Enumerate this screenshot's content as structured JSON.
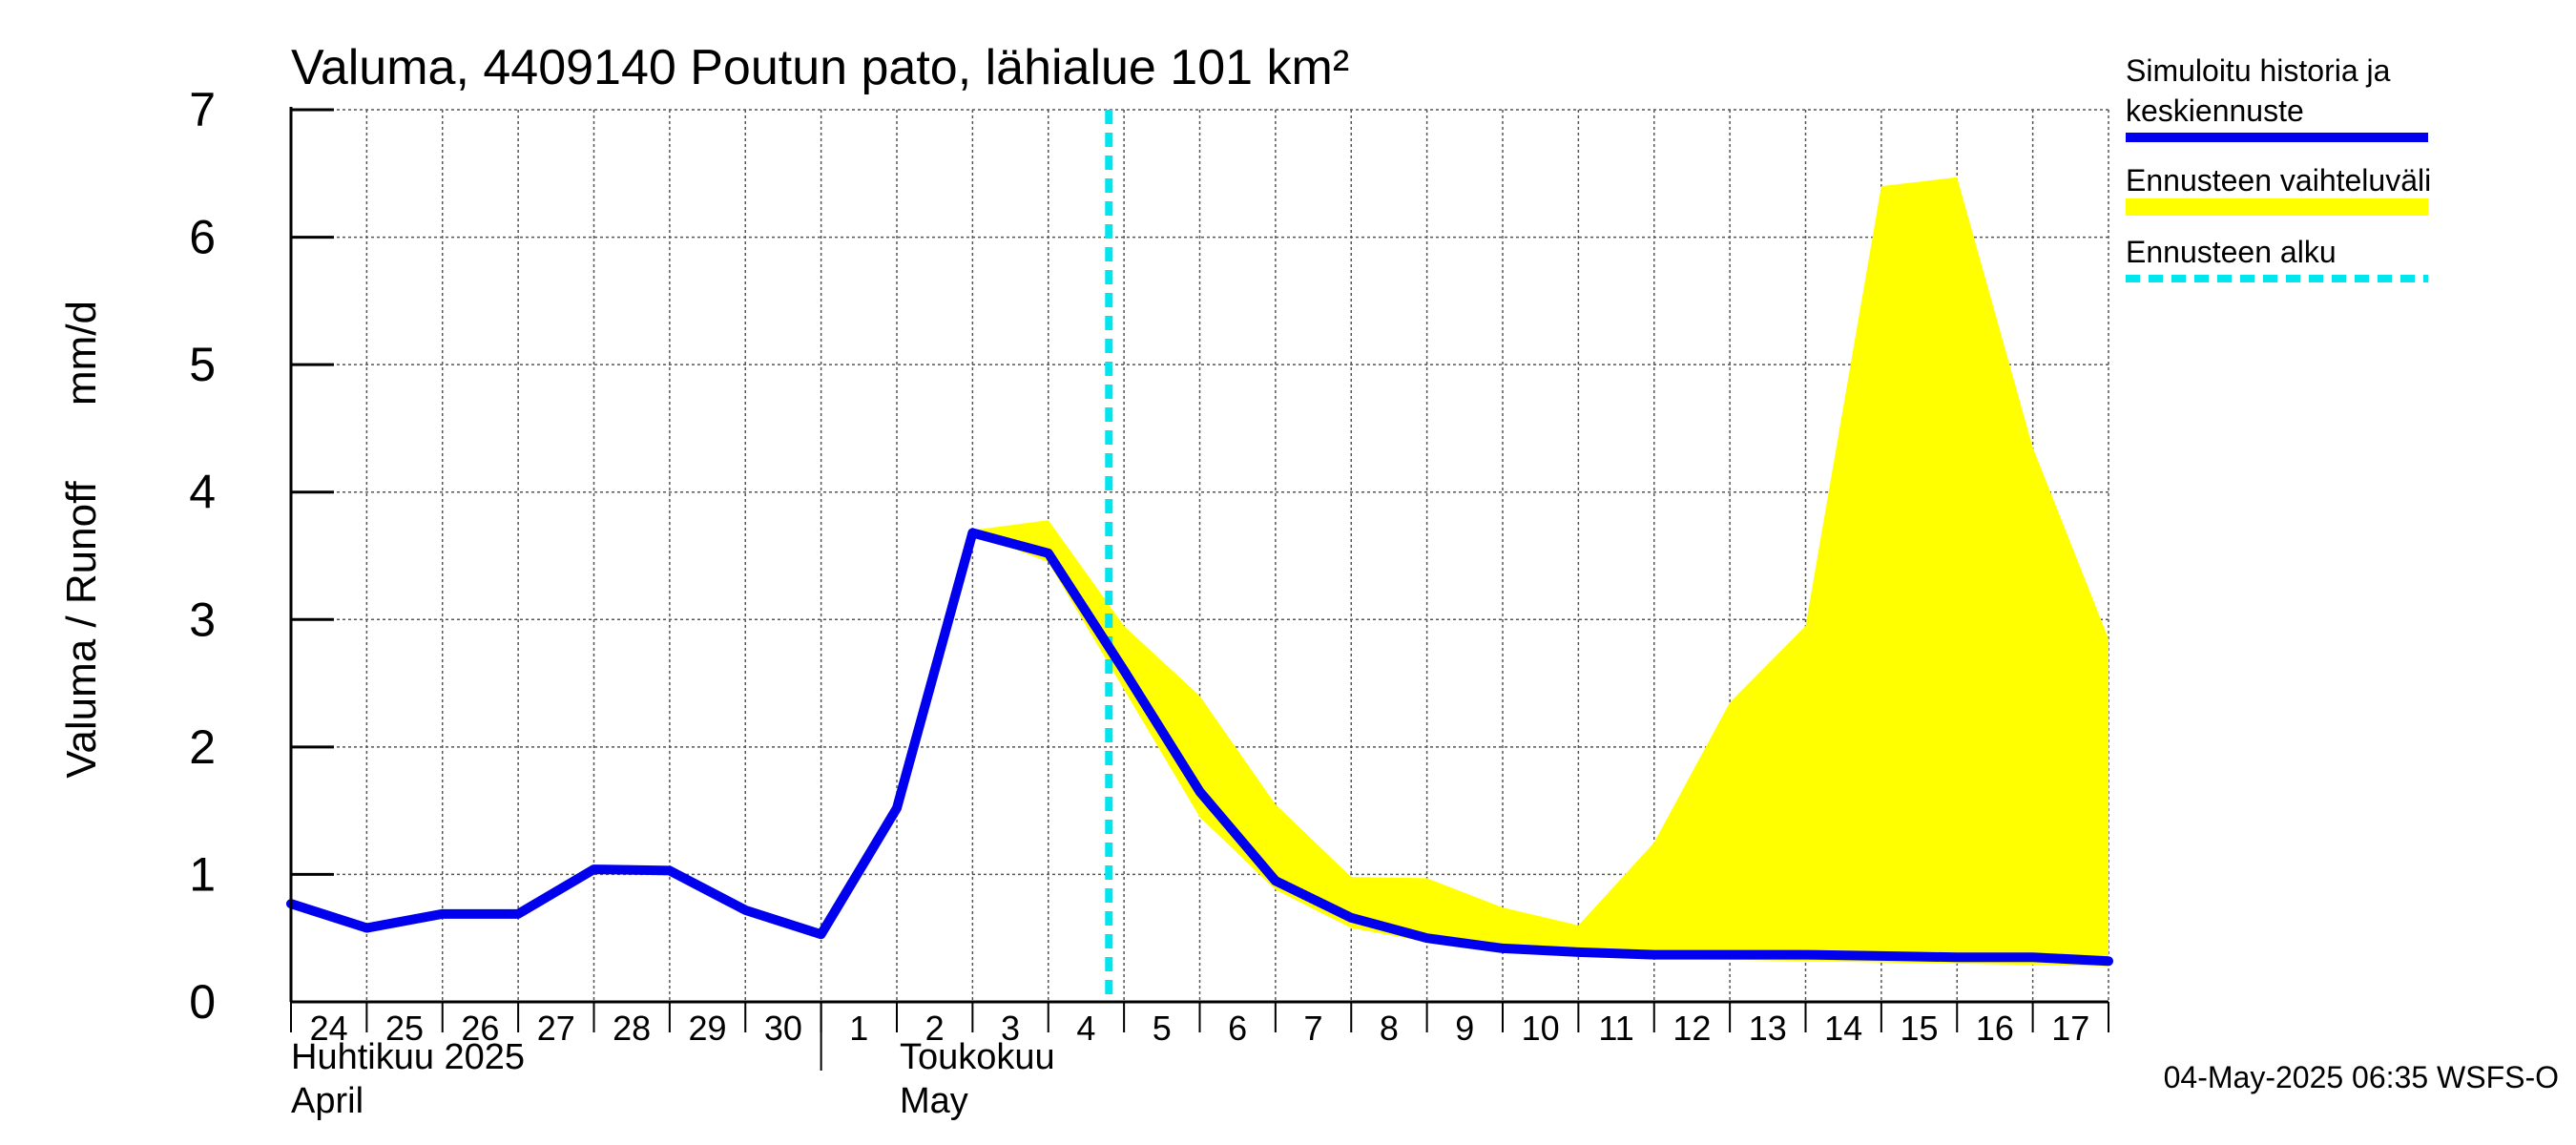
{
  "chart_data": {
    "type": "line",
    "title": "Valuma, 4409140 Poutun pato, lähialue 101 km²",
    "ylabel_fi": "Valuma / Runoff",
    "ylabel_unit": "mm/d",
    "ylim": [
      0,
      7
    ],
    "yticks": [
      "0",
      "1",
      "2",
      "3",
      "4",
      "5",
      "6",
      "7"
    ],
    "x_day_labels": [
      "24",
      "25",
      "26",
      "27",
      "28",
      "29",
      "30",
      "1",
      "2",
      "3",
      "4",
      "5",
      "6",
      "7",
      "8",
      "9",
      "10",
      "11",
      "12",
      "13",
      "14",
      "15",
      "16",
      "17"
    ],
    "month_labels": [
      {
        "fi": "Huhtikuu  2025",
        "en": "April"
      },
      {
        "fi": "Toukokuu",
        "en": "May"
      }
    ],
    "legend": {
      "simulated_line1": "Simuloitu historia ja",
      "simulated_line2": "keskiennuste",
      "range": "Ennusteen vaihteluväli",
      "forecast_start": "Ennusteen alku"
    },
    "footer": "04-May-2025 06:35 WSFS-O",
    "forecast_start_day": 10.8,
    "series": [
      {
        "name": "Simuloitu historia ja keskiennuste",
        "color": "#0000ee",
        "x": [
          0,
          1,
          2,
          3,
          4,
          5,
          6,
          7,
          8,
          9,
          10,
          11,
          12,
          13,
          14,
          15,
          16,
          17,
          18,
          19,
          20,
          21,
          22,
          23,
          24
        ],
        "values": [
          0.77,
          0.58,
          0.69,
          0.69,
          1.04,
          1.03,
          0.72,
          0.53,
          1.52,
          3.68,
          3.52,
          2.6,
          1.65,
          0.95,
          0.66,
          0.5,
          0.42,
          0.39,
          0.37,
          0.37,
          0.37,
          0.36,
          0.35,
          0.35,
          0.32
        ]
      },
      {
        "name": "Ennusteen vaihteluväli",
        "color": "#ffff00",
        "x": [
          9,
          10,
          11,
          12,
          13,
          14,
          15,
          16,
          17,
          18,
          19,
          20,
          21,
          22,
          23,
          24
        ],
        "upper": [
          3.7,
          3.78,
          2.95,
          2.4,
          1.55,
          0.98,
          0.97,
          0.74,
          0.6,
          1.25,
          2.35,
          2.95,
          6.4,
          6.47,
          4.35,
          2.85
        ],
        "lower": [
          3.68,
          3.45,
          2.45,
          1.45,
          0.88,
          0.58,
          0.47,
          0.4,
          0.36,
          0.34,
          0.33,
          0.32,
          0.31,
          0.3,
          0.29,
          0.28
        ]
      }
    ],
    "colors": {
      "series_line": "#0000ee",
      "range_fill": "#ffff00",
      "forecast_line": "#00e5ee",
      "grid": "#555555"
    }
  }
}
